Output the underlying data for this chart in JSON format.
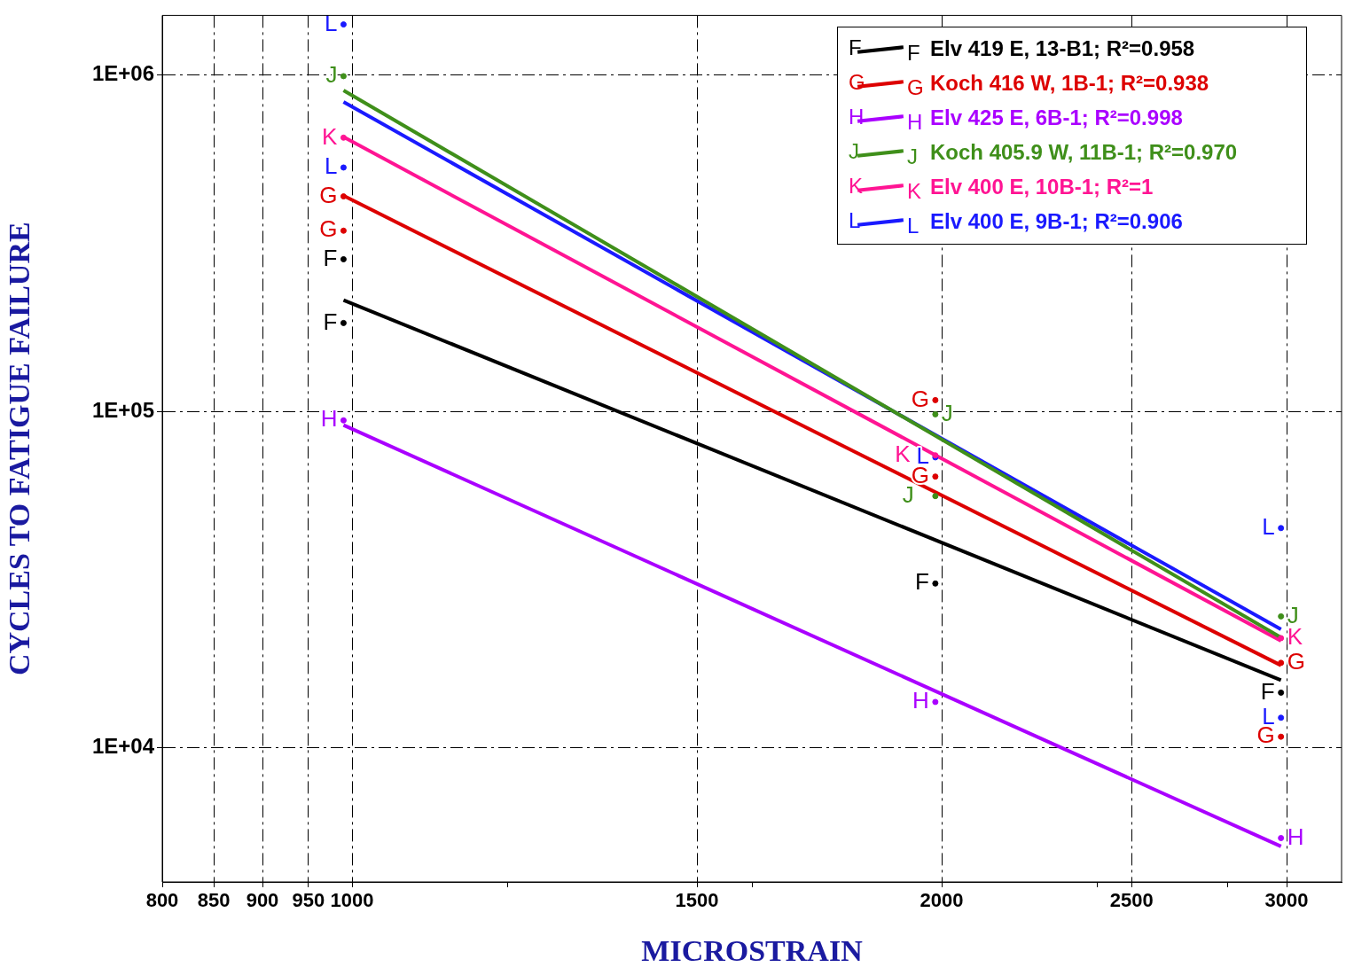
{
  "chart_data": {
    "type": "line",
    "xlabel": "MICROSTRAIN",
    "ylabel": "CYCLES TO FATIGUE FAILURE",
    "log": "xy",
    "grid": true,
    "legend": "top right",
    "xlim": [
      800,
      3200
    ],
    "ylim": [
      4000,
      1500000
    ],
    "xticks": [
      800,
      850,
      900,
      950,
      1000,
      {
        "value": 1200,
        "label": null
      },
      1500,
      {
        "value": 1600,
        "label": null
      },
      2000,
      {
        "value": 2400,
        "label": null
      },
      2500,
      {
        "value": 2800,
        "label": null
      },
      3000
    ],
    "yticks": [
      {
        "value": 10000,
        "label": "1E+04"
      },
      {
        "value": 100000,
        "label": "1E+05"
      },
      {
        "value": 1000000,
        "label": "1E+06"
      }
    ],
    "series": [
      {
        "name": "Elv 419 E, 13-B1; R²=0.958",
        "color": "#000000",
        "type": "line",
        "x": [
          990,
          2980
        ],
        "values": [
          214000,
          15900
        ]
      },
      {
        "color": "#000000",
        "type": "scatter",
        "x": [
          990,
          990,
          1985,
          2980
        ],
        "values": [
          283000,
          183000,
          30800,
          14600
        ],
        "value_labels": [
          "F",
          "F",
          "F",
          "F"
        ]
      },
      {
        "name": "Koch 416 W, 1B-1; R²=0.938",
        "color": "#dd0000",
        "type": "line",
        "x": [
          990,
          2980
        ],
        "values": [
          437000,
          17600
        ]
      },
      {
        "color": "#dd0000",
        "type": "scatter",
        "x": [
          990,
          990,
          1985,
          1985,
          2980,
          2980
        ],
        "values": [
          435000,
          344000,
          108000,
          64000,
          17900,
          10800
        ],
        "value_labels": [
          "G",
          "G",
          "G",
          "G",
          "G",
          "G"
        ]
      },
      {
        "name": "Elv 425 E, 6B-1; R²=0.998",
        "color": "#aa00ff",
        "type": "line",
        "x": [
          990,
          2980
        ],
        "values": [
          91000,
          5100
        ]
      },
      {
        "color": "#aa00ff",
        "type": "scatter",
        "x": [
          990,
          1985,
          2980
        ],
        "values": [
          94000,
          13700,
          5400
        ],
        "value_labels": [
          "H",
          "H",
          "H"
        ]
      },
      {
        "name": "Koch 405.9 W, 11B-1; R²=0.970",
        "color": "#3f8f1a",
        "type": "line",
        "x": [
          990,
          2980
        ],
        "values": [
          898000,
          21300
        ]
      },
      {
        "color": "#3f8f1a",
        "type": "scatter",
        "x": [
          990,
          1985,
          1985,
          2980
        ],
        "values": [
          990000,
          98000,
          56000,
          24600
        ],
        "value_labels": [
          "J",
          "J",
          "J",
          "J"
        ]
      },
      {
        "name": "Elv 400 E, 10B-1; R²=1",
        "color": "#ff1493",
        "type": "line",
        "x": [
          990,
          2980
        ],
        "values": [
          653000,
          20800
        ]
      },
      {
        "color": "#ff1493",
        "type": "scatter",
        "x": [
          990,
          1985,
          2980
        ],
        "values": [
          650000,
          74000,
          21200
        ],
        "value_labels": [
          "K",
          "K",
          "K"
        ]
      },
      {
        "name": "Elv 400 E, 9B-1; R²=0.906",
        "color": "#1a1aff",
        "type": "line",
        "x": [
          990,
          2980
        ],
        "values": [
          830000,
          22500
        ]
      },
      {
        "color": "#1a1aff",
        "type": "scatter",
        "x": [
          990,
          990,
          1985,
          2980,
          2980
        ],
        "values": [
          1410000,
          530000,
          73000,
          45000,
          12300
        ],
        "value_labels": [
          "L",
          "L",
          "L",
          "L",
          "L"
        ]
      }
    ]
  }
}
